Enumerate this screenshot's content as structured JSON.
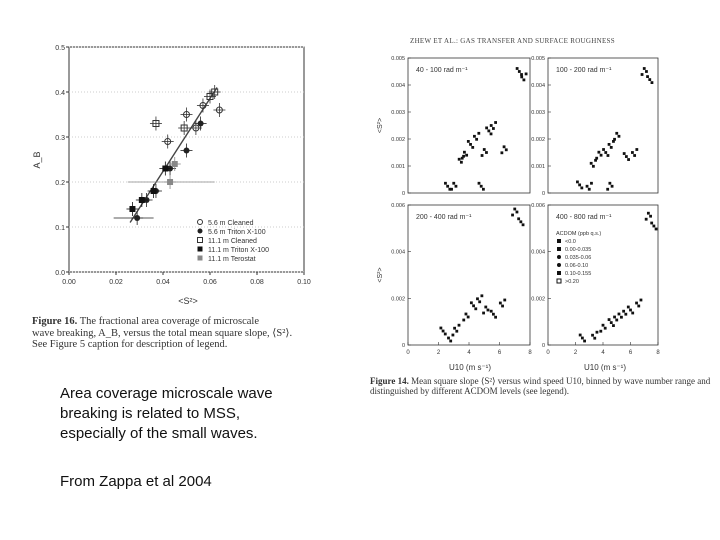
{
  "slide": {
    "note_lines": [
      "Area coverage microscale wave",
      "breaking is related to MSS,",
      "especially of the small waves."
    ],
    "source": "From Zappa et al 2004"
  },
  "left_figure": {
    "caption_label": "Figure 16.",
    "caption_lines": [
      "The fractional area coverage of microscale",
      "wave breaking, A_B, versus the total mean square slope, ⟨S²⟩.",
      "See Figure 5 caption for description of legend."
    ]
  },
  "right_figure": {
    "header": "ZHEW ET AL.: GAS TRANSFER AND SURFACE ROUGHNESS",
    "caption_label": "Figure 14.",
    "caption_lines": [
      "Mean square slope ⟨S²⟩ versus wind speed U10, binned by wave number range and",
      "distinguished by different ACDOM levels (see legend)."
    ]
  },
  "chart_data": [
    {
      "type": "scatter",
      "xlabel": "<S²>",
      "ylabel": "A_B",
      "xlim": [
        0.0,
        0.1
      ],
      "ylim": [
        0.0,
        0.5
      ],
      "xticks": [
        "0.00",
        "0.02",
        "0.04",
        "0.06",
        "0.08",
        "0.10"
      ],
      "yticks": [
        "0.0",
        "0.1",
        "0.2",
        "0.3",
        "0.4",
        "0.5"
      ],
      "legend_position": "bottom-right",
      "series": [
        {
          "name": "5.6 m Cleaned",
          "marker": "open-circle",
          "color": "#333333",
          "points": [
            [
              0.042,
              0.29
            ],
            [
              0.05,
              0.35
            ],
            [
              0.054,
              0.32
            ],
            [
              0.057,
              0.37
            ],
            [
              0.064,
              0.36
            ]
          ]
        },
        {
          "name": "5.6 m Triton X-100",
          "marker": "filled-circle",
          "color": "#222222",
          "points": [
            [
              0.029,
              0.12
            ],
            [
              0.033,
              0.16
            ],
            [
              0.037,
              0.18
            ],
            [
              0.043,
              0.23
            ],
            [
              0.05,
              0.27
            ],
            [
              0.056,
              0.33
            ]
          ]
        },
        {
          "name": "11.1 m Cleaned",
          "marker": "open-square",
          "color": "#333333",
          "points": [
            [
              0.037,
              0.33
            ],
            [
              0.049,
              0.32
            ],
            [
              0.06,
              0.39
            ],
            [
              0.062,
              0.4
            ]
          ]
        },
        {
          "name": "11.1 m Triton X-100",
          "marker": "filled-square",
          "color": "#111111",
          "points": [
            [
              0.027,
              0.14
            ],
            [
              0.031,
              0.16
            ],
            [
              0.036,
              0.18
            ],
            [
              0.041,
              0.23
            ]
          ]
        },
        {
          "name": "11.1 m Terostat",
          "marker": "gray-square",
          "color": "#888888",
          "points": [
            [
              0.043,
              0.2
            ],
            [
              0.045,
              0.24
            ]
          ]
        }
      ]
    },
    {
      "type": "scatter",
      "panels": [
        {
          "label": "40 - 100 rad m⁻¹",
          "ylabel": "<S²>",
          "yticks": [
            "0",
            "0.001",
            "0.002",
            "0.003",
            "0.004",
            "0.005"
          ],
          "ylim": [
            0,
            0.005
          ]
        },
        {
          "label": "100 - 200 rad m⁻¹",
          "ylabel": "",
          "yticks": [
            "0",
            "0.001",
            "0.002",
            "0.003",
            "0.004",
            "0.005"
          ],
          "ylim": [
            0,
            0.005
          ]
        },
        {
          "label": "200 - 400 rad m⁻¹",
          "ylabel": "<S²>",
          "yticks": [
            "0",
            "0.002",
            "0.004",
            "0.006"
          ],
          "ylim": [
            0,
            0.006
          ]
        },
        {
          "label": "400 - 800 rad m⁻¹",
          "ylabel": "",
          "yticks": [
            "0",
            "0.002",
            "0.004",
            "0.006"
          ],
          "ylim": [
            0,
            0.006
          ]
        }
      ],
      "xlabel": "U10 (m s⁻¹)",
      "xticks": [
        "0",
        "2",
        "4",
        "6",
        "8"
      ],
      "xlim": [
        0,
        8
      ],
      "legend_title": "ACDOM (ppb q.s.)",
      "legend": [
        "<0.0",
        "0.00-0.035",
        "0.035-0.06",
        "0.06-0.10",
        "0.10-0.155",
        ">0.20"
      ]
    }
  ]
}
